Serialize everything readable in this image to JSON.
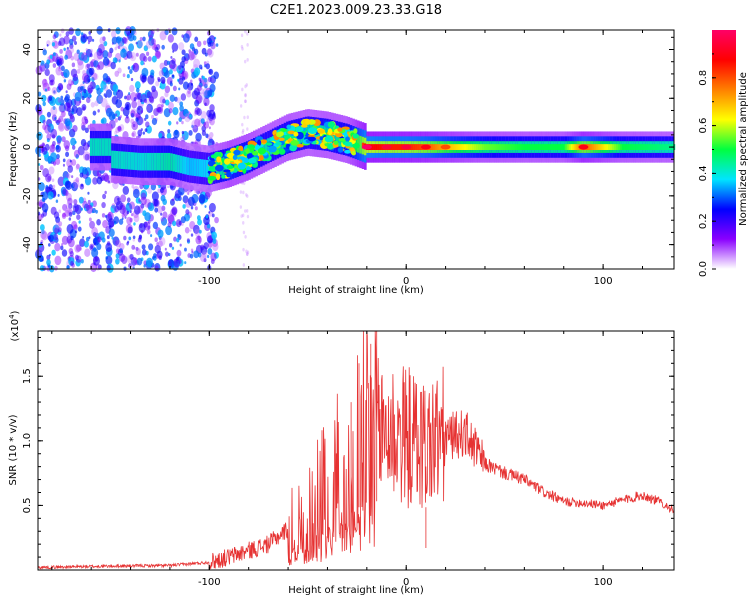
{
  "title": "C2E1.2023.009.23.33.G18",
  "chart_data": [
    {
      "type": "heatmap",
      "xlabel": "Height of straight line (km)",
      "ylabel": "Frequency (Hz)",
      "xlim": [
        -187,
        136
      ],
      "ylim": [
        -50,
        48
      ],
      "xticks": [
        -100,
        0,
        100
      ],
      "xtick_labels": [
        "-100",
        "0",
        "100"
      ],
      "yticks": [
        -40,
        -20,
        0,
        20,
        40
      ],
      "ytick_labels": [
        "-40",
        "-20",
        "0",
        "20",
        "40"
      ],
      "colorbar": {
        "label": "Normalized spectral amplitude",
        "range": [
          0,
          1
        ],
        "ticks": [
          0.0,
          0.2,
          0.4,
          0.6,
          0.8
        ],
        "tick_labels": [
          "0.0",
          "0.2",
          "0.4",
          "0.6",
          "0.8"
        ],
        "colors": [
          "#ffffff",
          "#8a00ff",
          "#0000ff",
          "#00e5ff",
          "#00ff40",
          "#ffff00",
          "#ff8000",
          "#ff0000",
          "#ff0066"
        ]
      },
      "ridge": [
        {
          "x": -150,
          "y": -5,
          "v": 0.45
        },
        {
          "x": -135,
          "y": -6,
          "v": 0.4
        },
        {
          "x": -120,
          "y": -6,
          "v": 0.5
        },
        {
          "x": -110,
          "y": -8,
          "v": 0.3
        },
        {
          "x": -100,
          "y": -9,
          "v": 0.35
        },
        {
          "x": -90,
          "y": -7,
          "v": 0.6
        },
        {
          "x": -80,
          "y": -4,
          "v": 0.55
        },
        {
          "x": -70,
          "y": 0,
          "v": 0.45
        },
        {
          "x": -60,
          "y": 4,
          "v": 0.5
        },
        {
          "x": -50,
          "y": 6,
          "v": 0.45
        },
        {
          "x": -40,
          "y": 5,
          "v": 0.5
        },
        {
          "x": -30,
          "y": 3,
          "v": 0.5
        },
        {
          "x": -20,
          "y": 0,
          "v": 0.9
        },
        {
          "x": -10,
          "y": 0,
          "v": 0.85
        },
        {
          "x": 0,
          "y": 0,
          "v": 0.85
        },
        {
          "x": 10,
          "y": 0,
          "v": 0.8
        },
        {
          "x": 20,
          "y": 0,
          "v": 0.7
        },
        {
          "x": 40,
          "y": 0,
          "v": 0.55
        },
        {
          "x": 60,
          "y": 0,
          "v": 0.5
        },
        {
          "x": 80,
          "y": 0,
          "v": 0.5
        },
        {
          "x": 90,
          "y": 0,
          "v": 0.8
        },
        {
          "x": 110,
          "y": 0,
          "v": 0.5
        },
        {
          "x": 136,
          "y": 0,
          "v": 0.45
        }
      ]
    },
    {
      "type": "line",
      "xlabel": "Height of straight line (km)",
      "ylabel": "SNR (10 * v/v)",
      "y_multiplier_label": "(x10",
      "y_multiplier_exp": "4",
      "y_multiplier_close": ")",
      "xlim": [
        -187,
        136
      ],
      "ylim": [
        0,
        18500
      ],
      "xticks": [
        -100,
        0,
        100
      ],
      "xtick_labels": [
        "-100",
        "0",
        "100"
      ],
      "yticks": [
        5000,
        10000,
        15000
      ],
      "ytick_labels": [
        "0.5",
        "1.0",
        "1.5"
      ],
      "color": "#e63232",
      "envelope": [
        {
          "x": -187,
          "y": 200
        },
        {
          "x": -150,
          "y": 300
        },
        {
          "x": -120,
          "y": 350
        },
        {
          "x": -100,
          "y": 600
        },
        {
          "x": -90,
          "y": 1000
        },
        {
          "x": -80,
          "y": 1500
        },
        {
          "x": -70,
          "y": 2000
        },
        {
          "x": -60,
          "y": 3200
        },
        {
          "x": -50,
          "y": 4500
        },
        {
          "x": -40,
          "y": 6500
        },
        {
          "x": -30,
          "y": 8500
        },
        {
          "x": -20,
          "y": 10500
        },
        {
          "x": -10,
          "y": 10800
        },
        {
          "x": 0,
          "y": 10300
        },
        {
          "x": 10,
          "y": 9700
        },
        {
          "x": 20,
          "y": 10300
        },
        {
          "x": 30,
          "y": 10600
        },
        {
          "x": 40,
          "y": 8200
        },
        {
          "x": 50,
          "y": 7500
        },
        {
          "x": 60,
          "y": 7000
        },
        {
          "x": 70,
          "y": 6000
        },
        {
          "x": 80,
          "y": 5300
        },
        {
          "x": 90,
          "y": 5200
        },
        {
          "x": 100,
          "y": 5000
        },
        {
          "x": 110,
          "y": 5400
        },
        {
          "x": 120,
          "y": 5800
        },
        {
          "x": 130,
          "y": 5200
        },
        {
          "x": 136,
          "y": 4600
        }
      ],
      "spikes": [
        {
          "x": -18,
          "y": 17500
        },
        {
          "x": -15,
          "y": 18500
        },
        {
          "x": -24,
          "y": 16000
        },
        {
          "x": -28,
          "y": 13000
        },
        {
          "x": 10,
          "y": 1700
        }
      ]
    }
  ]
}
